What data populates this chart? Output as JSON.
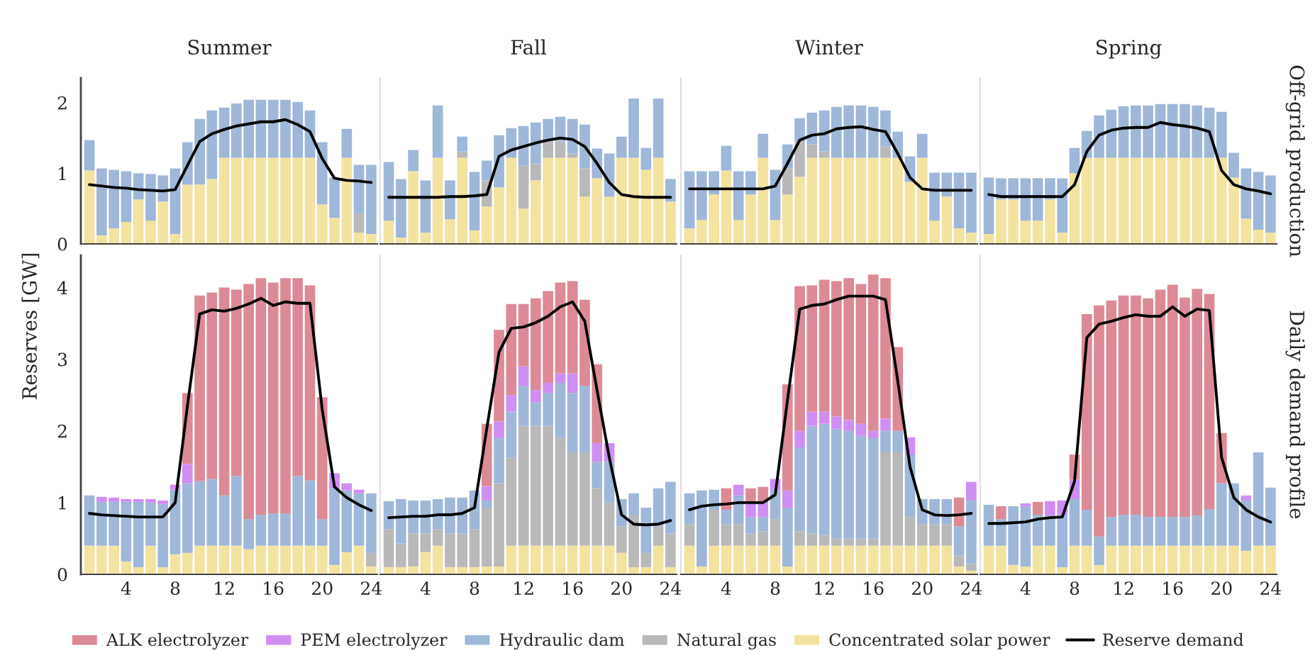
{
  "chart_data": [
    {
      "type": "bar",
      "stacked": true,
      "title": "Summer",
      "ylabel": "Reserves [GW]",
      "tick_labels": "y",
      "x": [
        1,
        2,
        3,
        4,
        5,
        6,
        7,
        8,
        9,
        10,
        11,
        12,
        13,
        14,
        15,
        16,
        17,
        18,
        19,
        20,
        21,
        22,
        23,
        24
      ],
      "xlim": [
        0.3,
        24.5
      ],
      "ylim": [
        0,
        2.35
      ],
      "yticks": [
        0,
        1,
        2
      ],
      "series": [
        {
          "color": "#f3e3a0",
          "values": [
            1.04,
            0.12,
            0.22,
            0.31,
            0.63,
            0.33,
            0.6,
            0.14,
            0.84,
            0.84,
            0.92,
            1.22,
            1.22,
            1.22,
            1.22,
            1.22,
            1.22,
            1.22,
            1.22,
            0.56,
            0.37,
            1.22,
            0.16,
            0.14
          ]
        },
        {
          "color": "#b9b9b9",
          "values": [
            null,
            null,
            null,
            null,
            null,
            null,
            null,
            null,
            null,
            null,
            null,
            null,
            null,
            null,
            null,
            null,
            null,
            null,
            null,
            null,
            null,
            null,
            0.27,
            null
          ]
        },
        {
          "color": "#9fb7d9",
          "values": [
            0.43,
            0.95,
            0.83,
            0.72,
            0.37,
            0.66,
            0.37,
            0.93,
            0.6,
            0.93,
            0.97,
            0.71,
            0.77,
            0.82,
            0.82,
            0.82,
            0.82,
            0.79,
            0.67,
            0.88,
            0.57,
            0.41,
            0.69,
            0.98
          ]
        },
        {
          "type": "line",
          "color": "#000000",
          "values": [
            0.84,
            0.82,
            0.8,
            0.79,
            0.77,
            0.76,
            0.75,
            0.77,
            1.11,
            1.45,
            1.56,
            1.62,
            1.67,
            1.7,
            1.73,
            1.73,
            1.76,
            1.69,
            1.59,
            1.21,
            0.93,
            0.9,
            0.89,
            0.87
          ]
        }
      ]
    },
    {
      "type": "bar",
      "stacked": true,
      "title": "Fall",
      "tick_labels": false,
      "x": [
        1,
        2,
        3,
        4,
        5,
        6,
        7,
        8,
        9,
        10,
        11,
        12,
        13,
        14,
        15,
        16,
        17,
        18,
        19,
        20,
        21,
        22,
        23,
        24
      ],
      "xlim": [
        0.3,
        24.5
      ],
      "ylim": [
        0,
        2.35
      ],
      "yticks": [
        0,
        1,
        2
      ],
      "series": [
        {
          "color": "#f3e3a0",
          "values": [
            0.33,
            0.09,
            1.03,
            0.16,
            1.22,
            0.35,
            1.22,
            0.19,
            0.53,
            0.8,
            1.22,
            0.5,
            0.9,
            1.22,
            1.22,
            1.22,
            0.67,
            0.93,
            0.67,
            1.22,
            1.22,
            1.05,
            1.22,
            0.6
          ]
        },
        {
          "color": "#b9b9b9",
          "values": [
            null,
            null,
            null,
            null,
            null,
            null,
            0.09,
            null,
            0.37,
            null,
            null,
            0.61,
            0.24,
            0.23,
            0.23,
            0.06,
            0.4,
            null,
            null,
            null,
            null,
            null,
            null,
            null
          ]
        },
        {
          "color": "#9fb7d9",
          "values": [
            0.83,
            0.83,
            0.3,
            0.74,
            0.74,
            0.55,
            0.21,
            0.83,
            0.28,
            0.74,
            0.42,
            0.56,
            0.58,
            0.32,
            0.35,
            0.49,
            0.62,
            0.42,
            0.61,
            0.3,
            0.84,
            0.31,
            0.84,
            0.32
          ]
        },
        {
          "type": "line",
          "color": "#000000",
          "values": [
            0.66,
            0.66,
            0.66,
            0.66,
            0.66,
            0.67,
            0.67,
            0.68,
            0.7,
            1.24,
            1.33,
            1.38,
            1.43,
            1.47,
            1.5,
            1.48,
            1.38,
            1.14,
            0.87,
            0.7,
            0.67,
            0.66,
            0.66,
            0.66
          ]
        }
      ]
    },
    {
      "type": "bar",
      "stacked": true,
      "title": "Winter",
      "tick_labels": false,
      "x": [
        1,
        2,
        3,
        4,
        5,
        6,
        7,
        8,
        9,
        10,
        11,
        12,
        13,
        14,
        15,
        16,
        17,
        18,
        19,
        20,
        21,
        22,
        23,
        24
      ],
      "xlim": [
        0.3,
        24.5
      ],
      "ylim": [
        0,
        2.35
      ],
      "yticks": [
        0,
        1,
        2
      ],
      "series": [
        {
          "color": "#f3e3a0",
          "values": [
            0.22,
            0.34,
            0.7,
            1.04,
            0.34,
            0.7,
            1.22,
            0.34,
            0.7,
            0.95,
            1.22,
            1.22,
            1.22,
            1.22,
            1.22,
            1.22,
            1.22,
            1.22,
            0.88,
            1.22,
            0.33,
            0.67,
            0.22,
            0.16
          ]
        },
        {
          "color": "#b9b9b9",
          "values": [
            null,
            null,
            null,
            null,
            null,
            null,
            null,
            null,
            0.37,
            0.5,
            0.19,
            0.09,
            null,
            null,
            null,
            null,
            0.16,
            null,
            null,
            null,
            null,
            null,
            null,
            null
          ]
        },
        {
          "color": "#9fb7d9",
          "values": [
            0.81,
            0.69,
            0.33,
            0.35,
            0.69,
            0.33,
            0.34,
            0.71,
            0.34,
            0.33,
            0.45,
            0.58,
            0.72,
            0.74,
            0.74,
            0.72,
            0.51,
            0.37,
            0.36,
            0.34,
            0.68,
            0.34,
            0.79,
            0.85
          ]
        },
        {
          "type": "line",
          "color": "#000000",
          "values": [
            0.78,
            0.78,
            0.78,
            0.78,
            0.78,
            0.78,
            0.78,
            0.82,
            1.14,
            1.47,
            1.54,
            1.56,
            1.63,
            1.65,
            1.66,
            1.62,
            1.59,
            1.28,
            0.94,
            0.78,
            0.76,
            0.76,
            0.76,
            0.76
          ]
        }
      ]
    },
    {
      "type": "bar",
      "stacked": true,
      "title": "Spring",
      "y2label": "Off-grid production",
      "tick_labels": false,
      "x": [
        1,
        2,
        3,
        4,
        5,
        6,
        7,
        8,
        9,
        10,
        11,
        12,
        13,
        14,
        15,
        16,
        17,
        18,
        19,
        20,
        21,
        22,
        23,
        24
      ],
      "xlim": [
        0.3,
        24.5
      ],
      "ylim": [
        0,
        2.35
      ],
      "yticks": [
        0,
        1,
        2
      ],
      "series": [
        {
          "color": "#f3e3a0",
          "values": [
            0.14,
            0.63,
            0.63,
            0.33,
            0.33,
            0.63,
            0.16,
            1.0,
            1.22,
            1.22,
            1.22,
            1.22,
            1.22,
            1.22,
            1.22,
            1.22,
            1.22,
            1.22,
            1.22,
            1.22,
            0.94,
            0.36,
            0.2,
            0.16
          ]
        },
        {
          "color": "#9fb7d9",
          "values": [
            0.8,
            0.3,
            0.3,
            0.6,
            0.6,
            0.3,
            0.77,
            0.36,
            0.38,
            0.6,
            0.68,
            0.73,
            0.74,
            0.74,
            0.76,
            0.76,
            0.76,
            0.74,
            0.71,
            0.65,
            0.35,
            0.71,
            0.82,
            0.81
          ]
        },
        {
          "type": "line",
          "color": "#000000",
          "values": [
            0.7,
            0.67,
            0.67,
            0.67,
            0.67,
            0.67,
            0.67,
            0.84,
            1.31,
            1.54,
            1.61,
            1.64,
            1.65,
            1.65,
            1.72,
            1.69,
            1.67,
            1.64,
            1.59,
            1.04,
            0.84,
            0.78,
            0.75,
            0.71
          ]
        }
      ]
    },
    {
      "type": "bar",
      "stacked": true,
      "legend": "bottom",
      "x": [
        1,
        2,
        3,
        4,
        5,
        6,
        7,
        8,
        9,
        10,
        11,
        12,
        13,
        14,
        15,
        16,
        17,
        18,
        19,
        20,
        21,
        22,
        23,
        24
      ],
      "xlim": [
        0.3,
        24.5
      ],
      "xticks": [
        4,
        8,
        12,
        16,
        20,
        24
      ],
      "ylim": [
        0,
        4.45
      ],
      "yticks": [
        0,
        1,
        2,
        3,
        4
      ],
      "series": [
        {
          "name": "Concentrated solar power",
          "color": "#f3e3a0",
          "values": [
            0.4,
            0.4,
            0.4,
            0.18,
            0.1,
            0.4,
            0.1,
            0.28,
            0.3,
            0.4,
            0.4,
            0.4,
            0.4,
            0.35,
            0.4,
            0.4,
            0.4,
            0.4,
            0.4,
            0.4,
            0.13,
            0.31,
            0.4,
            0.11
          ]
        },
        {
          "name": "Natural gas",
          "color": "#b9b9b9",
          "values": [
            null,
            null,
            null,
            null,
            null,
            null,
            null,
            null,
            null,
            null,
            null,
            null,
            null,
            null,
            null,
            null,
            null,
            null,
            null,
            null,
            null,
            null,
            null,
            0.19
          ]
        },
        {
          "name": "Hydraulic dam",
          "color": "#9fb7d9",
          "values": [
            0.7,
            0.61,
            0.61,
            0.83,
            0.91,
            0.6,
            0.88,
            0.9,
            0.97,
            0.9,
            0.93,
            0.7,
            0.97,
            0.42,
            0.43,
            0.45,
            0.45,
            0.97,
            0.91,
            0.37,
            1.07,
            0.86,
            0.73,
            0.83
          ]
        },
        {
          "name": "PEM electrolyzer",
          "color": "#cf8ef2",
          "values": [
            null,
            0.07,
            0.06,
            0.04,
            0.04,
            0.05,
            0.05,
            0.07,
            0.27,
            null,
            null,
            null,
            null,
            null,
            null,
            null,
            null,
            null,
            null,
            null,
            0.21,
            0.1,
            0.05,
            null
          ]
        },
        {
          "name": "ALK electrolyzer",
          "color": "#dc8a96",
          "values": [
            null,
            null,
            null,
            null,
            null,
            null,
            null,
            null,
            0.99,
            2.59,
            2.6,
            2.9,
            2.6,
            3.28,
            3.3,
            3.22,
            3.28,
            2.76,
            2.72,
            1.7,
            null,
            null,
            null,
            null
          ]
        },
        {
          "name": "Reserve demand",
          "type": "line",
          "color": "#000000",
          "values": [
            0.85,
            0.83,
            0.82,
            0.81,
            0.8,
            0.8,
            0.8,
            1.0,
            2.35,
            3.63,
            3.69,
            3.67,
            3.71,
            3.77,
            3.85,
            3.75,
            3.8,
            3.78,
            3.78,
            2.3,
            1.22,
            1.07,
            0.97,
            0.89
          ]
        }
      ]
    },
    {
      "type": "bar",
      "stacked": true,
      "tick_labels": "x",
      "x": [
        1,
        2,
        3,
        4,
        5,
        6,
        7,
        8,
        9,
        10,
        11,
        12,
        13,
        14,
        15,
        16,
        17,
        18,
        19,
        20,
        21,
        22,
        23,
        24
      ],
      "xlim": [
        0.3,
        24.5
      ],
      "xticks": [
        4,
        8,
        12,
        16,
        20,
        24
      ],
      "ylim": [
        0,
        4.45
      ],
      "yticks": [
        0,
        1,
        2,
        3,
        4
      ],
      "series": [
        {
          "color": "#f3e3a0",
          "values": [
            0.1,
            0.1,
            0.11,
            0.31,
            0.4,
            0.1,
            0.1,
            0.1,
            0.11,
            0.11,
            0.4,
            0.4,
            0.4,
            0.4,
            0.4,
            0.4,
            0.4,
            0.4,
            0.4,
            0.3,
            0.1,
            0.1,
            0.4,
            0.1
          ]
        },
        {
          "color": "#b9b9b9",
          "values": [
            0.53,
            0.33,
            0.46,
            0.26,
            0.23,
            0.47,
            0.47,
            0.53,
            0.82,
            1.16,
            1.23,
            1.67,
            1.67,
            1.67,
            1.5,
            1.3,
            1.3,
            0.8,
            0.6,
            0.37,
            0.73,
            0.2,
            0.27,
            0.47
          ]
        },
        {
          "color": "#9fb7d9",
          "values": [
            0.39,
            0.62,
            0.46,
            0.46,
            0.42,
            0.5,
            0.5,
            0.54,
            0.1,
            0.63,
            0.64,
            0.56,
            0.33,
            0.46,
            0.77,
            0.83,
            0.93,
            0.37,
            0.57,
            0.38,
            0.3,
            0.63,
            0.53,
            0.72
          ]
        },
        {
          "color": "#cf8ef2",
          "values": [
            null,
            null,
            null,
            null,
            null,
            null,
            null,
            null,
            0.2,
            0.23,
            0.23,
            0.27,
            0.17,
            0.14,
            0.13,
            0.27,
            null,
            0.26,
            0.26,
            null,
            null,
            null,
            null,
            null
          ]
        },
        {
          "color": "#dc8a96",
          "values": [
            null,
            null,
            null,
            null,
            null,
            null,
            null,
            null,
            0.87,
            1.28,
            1.27,
            0.87,
            1.28,
            1.28,
            1.27,
            1.29,
            1.2,
            1.1,
            null,
            null,
            null,
            null,
            null,
            null
          ]
        },
        {
          "type": "line",
          "color": "#000000",
          "values": [
            0.79,
            0.8,
            0.81,
            0.81,
            0.83,
            0.83,
            0.85,
            0.93,
            2.03,
            3.1,
            3.43,
            3.45,
            3.51,
            3.6,
            3.73,
            3.8,
            3.53,
            2.57,
            1.63,
            0.83,
            0.7,
            0.69,
            0.7,
            0.75
          ]
        }
      ]
    },
    {
      "type": "bar",
      "stacked": true,
      "tick_labels": "x",
      "x": [
        1,
        2,
        3,
        4,
        5,
        6,
        7,
        8,
        9,
        10,
        11,
        12,
        13,
        14,
        15,
        16,
        17,
        18,
        19,
        20,
        21,
        22,
        23,
        24
      ],
      "xlim": [
        0.3,
        24.5
      ],
      "xticks": [
        4,
        8,
        12,
        16,
        20,
        24
      ],
      "ylim": [
        0,
        4.45
      ],
      "yticks": [
        0,
        1,
        2,
        3,
        4
      ],
      "series": [
        {
          "color": "#f3e3a0",
          "values": [
            0.4,
            0.11,
            0.4,
            0.4,
            0.4,
            0.4,
            0.4,
            0.4,
            0.11,
            0.4,
            0.4,
            0.4,
            0.4,
            0.4,
            0.4,
            0.4,
            0.4,
            0.4,
            0.4,
            0.4,
            0.4,
            0.4,
            0.11,
            0.05
          ]
        },
        {
          "color": "#b9b9b9",
          "values": [
            0.3,
            null,
            0.5,
            0.3,
            0.3,
            0.17,
            0.2,
            0.37,
            null,
            0.2,
            0.17,
            0.15,
            0.1,
            0.1,
            0.1,
            0.1,
            1.3,
            1.3,
            0.4,
            0.3,
            0.3,
            0.3,
            0.15,
            0.1
          ]
        },
        {
          "color": "#9fb7d9",
          "values": [
            0.43,
            1.06,
            0.28,
            0.2,
            0.4,
            0.23,
            0.2,
            0.4,
            0.82,
            1.17,
            1.5,
            1.55,
            1.53,
            1.5,
            1.43,
            1.4,
            0.3,
            0.3,
            0.87,
            0.35,
            0.35,
            0.35,
            0.41,
            0.88
          ]
        },
        {
          "color": "#cf8ef2",
          "values": [
            null,
            null,
            null,
            null,
            0.15,
            0.2,
            0.2,
            0.16,
            0.24,
            0.23,
            0.2,
            0.17,
            0.17,
            0.15,
            0.17,
            0.1,
            0.17,
            null,
            0.24,
            null,
            null,
            null,
            null,
            0.26
          ]
        },
        {
          "color": "#dc8a96",
          "values": [
            null,
            null,
            null,
            0.3,
            null,
            0.2,
            0.22,
            null,
            1.48,
            2.02,
            1.76,
            1.84,
            1.89,
            1.98,
            1.95,
            2.18,
            1.96,
            1.17,
            null,
            null,
            null,
            null,
            0.4,
            null
          ]
        },
        {
          "type": "line",
          "color": "#000000",
          "values": [
            0.9,
            0.95,
            0.97,
            0.98,
            1.0,
            1.0,
            1.0,
            1.11,
            2.43,
            3.7,
            3.75,
            3.77,
            3.83,
            3.88,
            3.88,
            3.88,
            3.83,
            2.7,
            1.5,
            0.9,
            0.83,
            0.82,
            0.83,
            0.85
          ]
        }
      ]
    },
    {
      "type": "bar",
      "stacked": true,
      "y2label": "Daily demand profile",
      "tick_labels": "x",
      "x": [
        1,
        2,
        3,
        4,
        5,
        6,
        7,
        8,
        9,
        10,
        11,
        12,
        13,
        14,
        15,
        16,
        17,
        18,
        19,
        20,
        21,
        22,
        23,
        24
      ],
      "xlim": [
        0.3,
        24.5
      ],
      "xticks": [
        4,
        8,
        12,
        16,
        20,
        24
      ],
      "ylim": [
        0,
        4.45
      ],
      "yticks": [
        0,
        1,
        2,
        3,
        4
      ],
      "series": [
        {
          "color": "#f3e3a0",
          "values": [
            0.4,
            0.4,
            0.13,
            0.11,
            0.4,
            0.4,
            0.1,
            0.4,
            0.4,
            0.13,
            0.4,
            0.4,
            0.4,
            0.4,
            0.4,
            0.4,
            0.4,
            0.4,
            0.4,
            0.4,
            0.4,
            0.33,
            0.4,
            0.4
          ]
        },
        {
          "color": "#9fb7d9",
          "values": [
            0.57,
            0.37,
            0.82,
            0.84,
            0.43,
            0.42,
            0.73,
            0.65,
            0.5,
            0.4,
            0.4,
            0.43,
            0.43,
            0.4,
            0.4,
            0.4,
            0.4,
            0.42,
            0.51,
            0.87,
            0.87,
            0.7,
            1.3,
            0.81
          ]
        },
        {
          "color": "#cf8ef2",
          "values": [
            null,
            null,
            null,
            0.04,
            null,
            0.2,
            0.2,
            0.27,
            null,
            null,
            null,
            null,
            null,
            null,
            null,
            null,
            null,
            null,
            null,
            null,
            null,
            0.07,
            null,
            null
          ]
        },
        {
          "color": "#dc8a96",
          "values": [
            null,
            0.18,
            null,
            null,
            0.18,
            null,
            null,
            0.35,
            2.73,
            3.22,
            3.02,
            3.06,
            3.06,
            3.05,
            3.17,
            3.24,
            3.06,
            3.16,
            3.0,
            0.7,
            null,
            null,
            null,
            null
          ]
        },
        {
          "type": "line",
          "color": "#000000",
          "values": [
            0.71,
            0.71,
            0.72,
            0.73,
            0.77,
            0.79,
            0.8,
            1.3,
            3.3,
            3.49,
            3.53,
            3.58,
            3.62,
            3.6,
            3.6,
            3.73,
            3.6,
            3.7,
            3.68,
            1.63,
            1.07,
            0.9,
            0.8,
            0.73
          ]
        }
      ]
    }
  ]
}
